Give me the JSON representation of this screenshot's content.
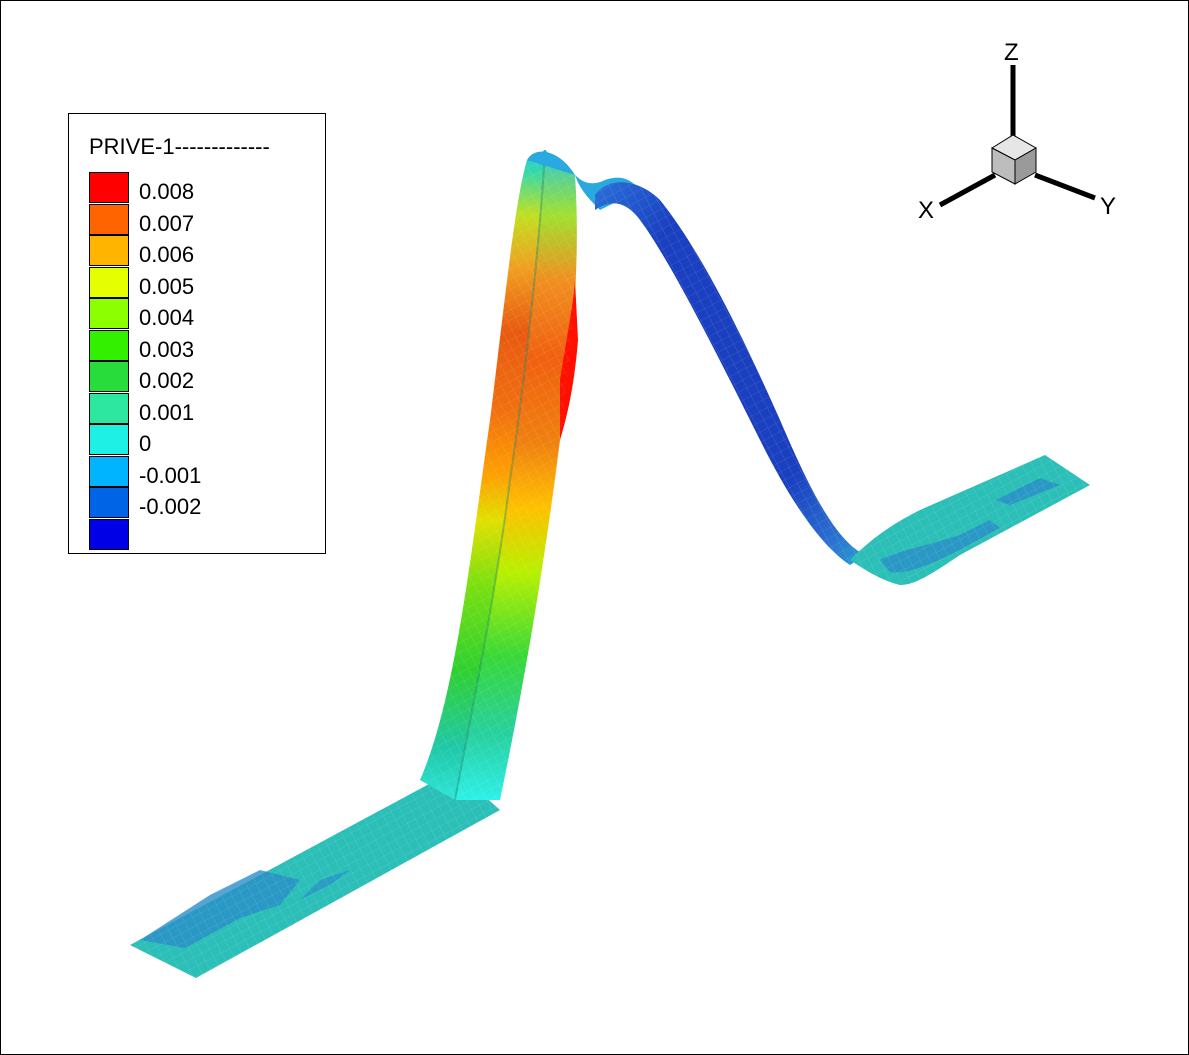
{
  "legend": {
    "title": "PRIVE-1-------------",
    "levels": [
      {
        "label": "0.008",
        "color": "#ff0000"
      },
      {
        "label": "0.007",
        "color": "#ff6400"
      },
      {
        "label": "0.006",
        "color": "#ffb400"
      },
      {
        "label": "0.005",
        "color": "#e6ff00"
      },
      {
        "label": "0.004",
        "color": "#8cff00"
      },
      {
        "label": "0.003",
        "color": "#32f000"
      },
      {
        "label": "0.002",
        "color": "#28dc3c"
      },
      {
        "label": "0.001",
        "color": "#2de6a0"
      },
      {
        "label": "0",
        "color": "#1ef0e6"
      },
      {
        "label": "-0.001",
        "color": "#00b4ff"
      },
      {
        "label": "-0.002",
        "color": "#0064e6"
      },
      {
        "label": "",
        "color": "#0000e6"
      }
    ]
  },
  "axes": {
    "x": "X",
    "y": "Y",
    "z": "Z"
  },
  "colors": {
    "surface_flat": "#2cbfb8",
    "surface_patch": "#2a8ec8",
    "ridge_blue": "#1a3fbf"
  }
}
